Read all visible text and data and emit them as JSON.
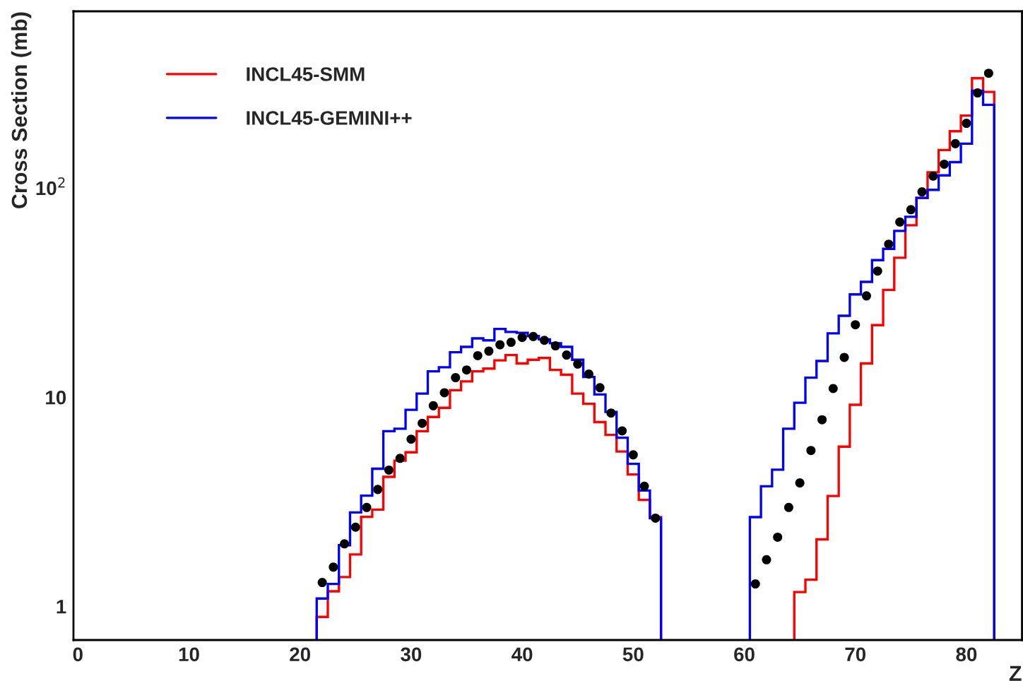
{
  "chart_data": {
    "type": "histogram",
    "ylabel": "Cross Section (mb)",
    "xlabel": "Z",
    "xlim": [
      -0.4,
      85
    ],
    "ylim": [
      0.69,
      700
    ],
    "log": "y",
    "xticks": [
      0,
      10,
      20,
      30,
      40,
      50,
      60,
      70,
      80
    ],
    "yticks": [
      1,
      10,
      {
        "value": 100,
        "label": "10$^{2}$"
      }
    ],
    "grid": false,
    "legend": "top left",
    "series": [
      {
        "name": "INCL45-SMM",
        "color": "#ff0000",
        "bins": [
          21.5,
          22.5,
          23.5,
          24.5,
          25.5,
          26.5,
          27.5,
          28.5,
          29.5,
          30.5,
          31.5,
          32.5,
          33.5,
          34.5,
          35.5,
          36.5,
          37.5,
          38.5,
          39.5,
          40.5,
          41.5,
          42.5,
          43.5,
          44.5,
          45.5,
          46.5,
          47.5,
          48.5,
          49.5,
          50.5,
          51.5,
          52.5
        ],
        "values": [
          0.89,
          1.18,
          1.38,
          1.77,
          2.68,
          2.9,
          4.16,
          4.97,
          5.45,
          6.88,
          8.04,
          8.9,
          10.8,
          11.9,
          13.3,
          13.7,
          15.0,
          15.9,
          14.5,
          15.1,
          15.4,
          13.5,
          12.8,
          10.4,
          9.3,
          7.6,
          6.6,
          5.5,
          4.27,
          3.23,
          2.67
        ]
      },
      {
        "color": "#ff0000",
        "bins": [
          64.5,
          65.5,
          66.5,
          67.5,
          68.5,
          69.5,
          70.5,
          71.5,
          72.5,
          73.5,
          74.5,
          75.5,
          76.5,
          77.5,
          78.5,
          79.5,
          80.5,
          81.5,
          82.5
        ],
        "values": [
          1.17,
          1.34,
          2.09,
          3.37,
          5.8,
          9.2,
          14.5,
          22.1,
          32.6,
          46.4,
          66.4,
          89.7,
          119,
          152,
          187,
          222,
          335,
          288
        ]
      },
      {
        "name": "INCL45-GEMINI++",
        "color": "#0000ff",
        "bins": [
          21.5,
          22.5,
          23.5,
          24.5,
          25.5,
          26.5,
          27.5,
          28.5,
          29.5,
          30.5,
          31.5,
          32.5,
          33.5,
          34.5,
          35.5,
          36.5,
          37.5,
          38.5,
          39.5,
          40.5,
          41.5,
          42.5,
          43.5,
          44.5,
          45.5,
          46.5,
          47.5,
          48.5,
          49.5,
          50.5,
          51.5,
          52.5
        ],
        "values": [
          1.09,
          1.28,
          1.96,
          2.81,
          3.38,
          4.55,
          6.88,
          7.07,
          8.7,
          10.4,
          13.3,
          13.9,
          16.4,
          17.4,
          19.1,
          18.7,
          21.2,
          20.5,
          20.3,
          19.6,
          18.9,
          18.1,
          17.4,
          15.1,
          12.5,
          10.3,
          8.5,
          6.4,
          4.8,
          3.58,
          2.64
        ]
      },
      {
        "color": "#0000ff",
        "bins": [
          60.5,
          61.5,
          62.5,
          63.5,
          64.5,
          65.5,
          66.5,
          67.5,
          68.5,
          69.5,
          70.5,
          71.5,
          72.5,
          73.5,
          74.5,
          75.5,
          76.5,
          77.5,
          78.5,
          79.5,
          80.5,
          81.5,
          82.5
        ],
        "values": [
          2.67,
          3.75,
          4.5,
          7.07,
          9.4,
          12.4,
          14.9,
          20.2,
          24.5,
          31.0,
          35.6,
          45.2,
          51.2,
          62.4,
          72.9,
          89.7,
          98,
          115,
          133,
          163,
          292,
          250
        ]
      },
      {
        "color": "#000000",
        "type": "scatter",
        "marker": "circle",
        "x": [
          22,
          23,
          24,
          25,
          26,
          27,
          28,
          29,
          30,
          31,
          32,
          33,
          34,
          35,
          36,
          37,
          38,
          39,
          40,
          41,
          42,
          43,
          44,
          45,
          46,
          47,
          48,
          49,
          50,
          51,
          52,
          61,
          62,
          63,
          64,
          65,
          66,
          67,
          68,
          69,
          70,
          71,
          72,
          73,
          74,
          75,
          76,
          77,
          78,
          79,
          80,
          81,
          82
        ],
        "values": [
          1.3,
          1.54,
          1.99,
          2.39,
          2.97,
          3.62,
          4.48,
          5.1,
          6.3,
          7.5,
          9.1,
          10.5,
          12.4,
          13.5,
          15.8,
          16.6,
          17.8,
          18.3,
          19.3,
          19.5,
          18.7,
          17.6,
          15.9,
          14.4,
          12.9,
          11.1,
          8.4,
          6.9,
          5.3,
          3.75,
          2.64,
          1.28,
          1.67,
          2.14,
          2.97,
          3.89,
          5.56,
          7.8,
          11.0,
          15.5,
          22.2,
          30.5,
          40.1,
          53.9,
          68.8,
          78.8,
          95.9,
          114,
          130,
          163,
          204,
          285,
          354
        ]
      }
    ]
  }
}
